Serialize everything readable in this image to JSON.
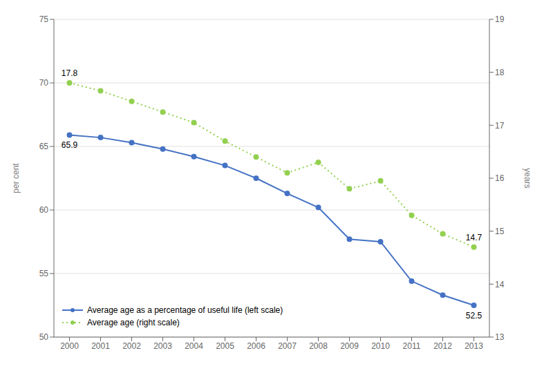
{
  "chart_data": {
    "type": "line",
    "x": [
      2000,
      2001,
      2002,
      2003,
      2004,
      2005,
      2006,
      2007,
      2008,
      2009,
      2010,
      2011,
      2012,
      2013
    ],
    "xlim": [
      1999.5,
      2013.5
    ],
    "xticks": [
      2000,
      2001,
      2002,
      2003,
      2004,
      2005,
      2006,
      2007,
      2008,
      2009,
      2010,
      2011,
      2012,
      2013
    ],
    "ylim": [
      50,
      75
    ],
    "yticks": [
      50,
      55,
      60,
      65,
      70,
      75
    ],
    "y2lim": [
      13,
      19
    ],
    "y2ticks": [
      13,
      14,
      15,
      16,
      17,
      18,
      19
    ],
    "ylabel": "per cent",
    "y2label": "years",
    "grid": true,
    "legend": "lower left",
    "series": [
      {
        "name": "Average age as a percentage of useful life (left scale)",
        "color": "#4472C4",
        "line_style": "solid",
        "marker": "circle",
        "values": [
          65.9,
          65.7,
          65.3,
          64.8,
          64.2,
          63.5,
          62.5,
          61.3,
          60.2,
          57.7,
          57.5,
          54.4,
          53.3,
          52.5
        ]
      },
      {
        "name": "Average age (right scale)",
        "color": "#92D050",
        "line_style": "dotted",
        "marker": "circle",
        "axis": "y2",
        "values": [
          17.8,
          17.65,
          17.45,
          17.25,
          17.05,
          16.7,
          16.4,
          16.1,
          16.3,
          15.8,
          15.95,
          15.3,
          14.95,
          14.7
        ]
      }
    ],
    "annotations": [
      {
        "text": "65.9",
        "x": 2000,
        "y": 65.9
      },
      {
        "text": "52.5",
        "x": 2013,
        "y": 52.5
      },
      {
        "text": "17.8",
        "x": 2000,
        "y": 17.8,
        "axis": "y2"
      },
      {
        "text": "14.7",
        "x": 2013,
        "y": 14.7,
        "axis": "y2"
      }
    ]
  }
}
